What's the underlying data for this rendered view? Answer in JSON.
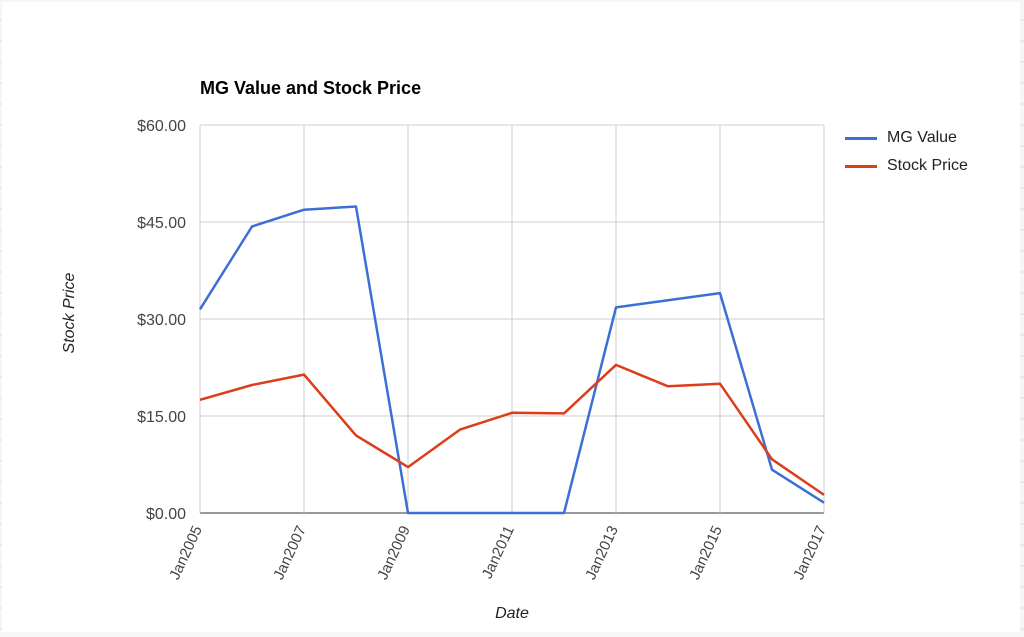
{
  "chart_data": {
    "type": "line",
    "title": "MG Value and Stock Price",
    "xlabel": "Date",
    "ylabel": "Stock Price",
    "x": [
      "Jan2005",
      "Jan2006",
      "Jan2007",
      "Jan2008",
      "Jan2009",
      "Jan2010",
      "Jan2011",
      "Jan2012",
      "Jan2013",
      "Jan2014",
      "Jan2015",
      "Jan2016",
      "Jan2017"
    ],
    "x_tick_labels": [
      "Jan2005",
      "Jan2007",
      "Jan2009",
      "Jan2011",
      "Jan2013",
      "Jan2015",
      "Jan2017"
    ],
    "y_tick_labels": [
      "$0.00",
      "$15.00",
      "$30.00",
      "$45.00",
      "$60.00"
    ],
    "y_ticks": [
      0,
      15,
      30,
      45,
      60
    ],
    "ylim": [
      0,
      60
    ],
    "grid": true,
    "legend_position": "right",
    "series": [
      {
        "name": "MG Value",
        "color": "#3c6fd6",
        "values": [
          31.5,
          44.3,
          46.9,
          47.4,
          0,
          0,
          0,
          0,
          31.8,
          32.9,
          34.0,
          6.7,
          1.6
        ]
      },
      {
        "name": "Stock Price",
        "color": "#dc3d1a",
        "values": [
          17.5,
          19.8,
          21.4,
          12.0,
          7.1,
          12.9,
          15.5,
          15.4,
          22.9,
          19.6,
          20.0,
          8.3,
          2.8
        ]
      }
    ]
  }
}
